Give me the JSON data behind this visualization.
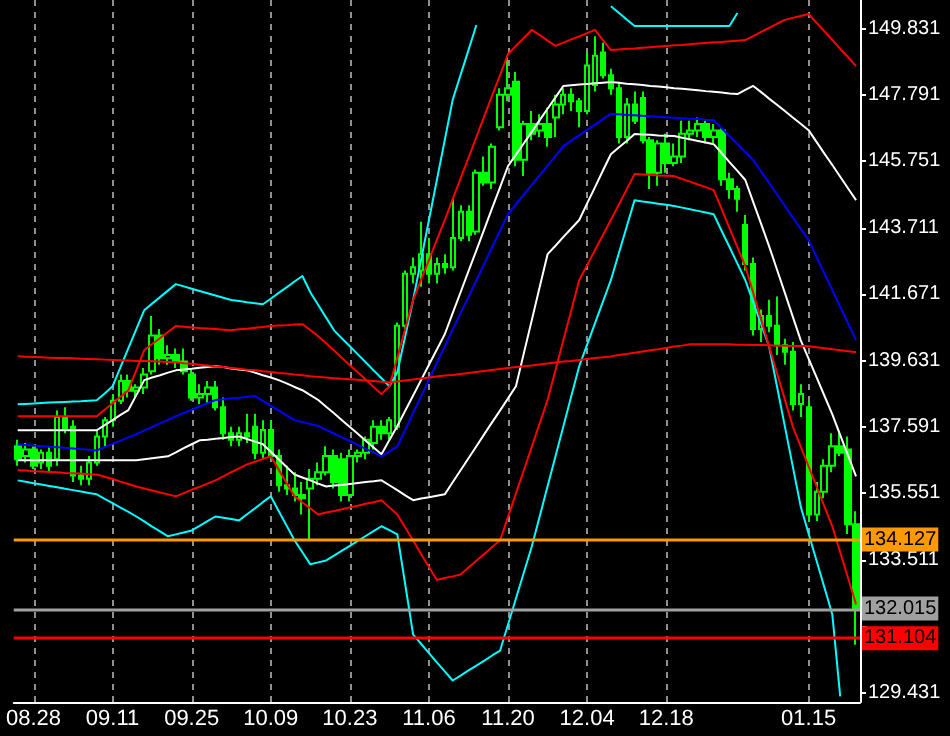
{
  "chart_data": {
    "type": "candlestick",
    "color": "#00ff00",
    "categories": [
      null,
      null,
      "08.28",
      null,
      null,
      null,
      null,
      null,
      null,
      null,
      null,
      null,
      "09.11",
      null,
      null,
      null,
      null,
      null,
      null,
      null,
      null,
      null,
      "09.25",
      null,
      null,
      null,
      null,
      null,
      null,
      null,
      null,
      null,
      "10.09",
      null,
      null,
      null,
      null,
      null,
      null,
      null,
      null,
      null,
      "10.23",
      null,
      null,
      null,
      null,
      null,
      null,
      null,
      null,
      null,
      "11.06",
      null,
      null,
      null,
      null,
      null,
      null,
      null,
      null,
      null,
      "11.20",
      null,
      null,
      null,
      null,
      null,
      null,
      null,
      null,
      null,
      "12.04",
      null,
      null,
      null,
      null,
      null,
      null,
      null,
      null,
      null,
      "12.18",
      null,
      null,
      null,
      null,
      null,
      null,
      null,
      null,
      null,
      null,
      null,
      null,
      null,
      null,
      null,
      null,
      null,
      "01.15",
      null,
      null,
      null,
      null,
      null,
      null
    ],
    "ohlc": [
      [
        137.0,
        137.2,
        136.4,
        136.6
      ],
      [
        136.7,
        137.1,
        136.5,
        136.9
      ],
      [
        136.9,
        137.0,
        136.3,
        136.4
      ],
      [
        136.5,
        136.9,
        136.3,
        136.8
      ],
      [
        136.8,
        137.0,
        136.2,
        136.4
      ],
      [
        136.6,
        138.1,
        136.4,
        137.9
      ],
      [
        137.9,
        138.2,
        137.4,
        137.5
      ],
      [
        137.6,
        137.8,
        135.9,
        136.1
      ],
      [
        136.1,
        136.4,
        135.8,
        136.0
      ],
      [
        136.0,
        136.7,
        135.8,
        136.5
      ],
      [
        136.5,
        137.5,
        136.4,
        137.3
      ],
      [
        137.3,
        137.9,
        137.0,
        137.8
      ],
      [
        137.8,
        138.6,
        137.6,
        138.4
      ],
      [
        138.4,
        139.2,
        138.3,
        139.0
      ],
      [
        139.0,
        139.2,
        138.5,
        138.7
      ],
      [
        138.7,
        138.9,
        138.5,
        138.8
      ],
      [
        138.8,
        139.4,
        138.6,
        139.2
      ],
      [
        139.3,
        141.0,
        139.2,
        140.4
      ],
      [
        140.4,
        140.6,
        139.5,
        139.7
      ],
      [
        139.7,
        140.1,
        139.5,
        139.8
      ],
      [
        139.8,
        140.0,
        139.4,
        139.6
      ],
      [
        139.6,
        140.0,
        139.2,
        139.3
      ],
      [
        139.2,
        139.4,
        138.4,
        138.5
      ],
      [
        138.5,
        138.9,
        138.3,
        138.6
      ],
      [
        138.6,
        139.0,
        138.3,
        138.8
      ],
      [
        138.8,
        139.0,
        138.1,
        138.2
      ],
      [
        138.2,
        138.5,
        137.2,
        137.4
      ],
      [
        137.4,
        137.6,
        137.0,
        137.2
      ],
      [
        137.2,
        137.6,
        137.0,
        137.4
      ],
      [
        137.4,
        138.0,
        137.1,
        137.3
      ],
      [
        137.6,
        138.0,
        136.6,
        136.8
      ],
      [
        136.8,
        137.8,
        136.6,
        137.5
      ],
      [
        137.5,
        137.8,
        136.6,
        136.7
      ],
      [
        136.7,
        136.9,
        135.6,
        135.8
      ],
      [
        135.8,
        136.4,
        135.5,
        135.7
      ],
      [
        135.7,
        136.2,
        135.3,
        135.5
      ],
      [
        135.5,
        135.9,
        134.9,
        135.4
      ],
      [
        135.7,
        136.3,
        134.1,
        136.0
      ],
      [
        136.0,
        136.5,
        135.8,
        136.2
      ],
      [
        136.2,
        137.0,
        136.1,
        136.7
      ],
      [
        136.7,
        136.9,
        135.7,
        135.9
      ],
      [
        136.6,
        136.8,
        135.3,
        135.5
      ],
      [
        135.5,
        136.9,
        135.3,
        136.7
      ],
      [
        136.7,
        136.9,
        136.5,
        136.8
      ],
      [
        136.8,
        137.3,
        136.6,
        137.2
      ],
      [
        137.1,
        137.8,
        136.9,
        137.6
      ],
      [
        137.6,
        137.8,
        137.2,
        137.4
      ],
      [
        137.4,
        137.9,
        137.2,
        137.8
      ],
      [
        137.6,
        140.8,
        137.5,
        140.7
      ],
      [
        140.7,
        142.4,
        140.6,
        142.3
      ],
      [
        142.3,
        142.8,
        142.0,
        142.5
      ],
      [
        142.4,
        143.9,
        141.9,
        142.9
      ],
      [
        142.9,
        143.4,
        142.0,
        142.3
      ],
      [
        142.3,
        142.8,
        142.0,
        142.6
      ],
      [
        142.6,
        142.9,
        142.3,
        142.5
      ],
      [
        142.5,
        144.6,
        142.4,
        143.4
      ],
      [
        143.4,
        144.4,
        143.3,
        144.2
      ],
      [
        144.2,
        144.4,
        143.3,
        143.5
      ],
      [
        143.6,
        145.5,
        143.5,
        145.4
      ],
      [
        145.4,
        145.9,
        145.0,
        145.1
      ],
      [
        145.1,
        146.3,
        144.9,
        146.2
      ],
      [
        146.8,
        148.0,
        146.7,
        147.8
      ],
      [
        147.8,
        149.0,
        147.6,
        148.0
      ],
      [
        148.2,
        148.5,
        145.6,
        145.8
      ],
      [
        145.8,
        147.0,
        145.3,
        146.9
      ],
      [
        146.9,
        147.3,
        146.4,
        146.6
      ],
      [
        146.7,
        147.2,
        146.5,
        146.9
      ],
      [
        146.9,
        147.4,
        146.2,
        146.5
      ],
      [
        147.1,
        147.8,
        146.5,
        147.5
      ],
      [
        147.5,
        148.0,
        147.2,
        147.8
      ],
      [
        147.8,
        148.0,
        147.3,
        147.6
      ],
      [
        147.6,
        147.7,
        146.8,
        147.3
      ],
      [
        147.3,
        149.1,
        147.2,
        148.7
      ],
      [
        148.1,
        149.6,
        147.9,
        149.0
      ],
      [
        149.1,
        149.4,
        148.3,
        148.4
      ],
      [
        148.4,
        148.6,
        147.8,
        148.0
      ],
      [
        148.0,
        148.2,
        146.3,
        146.5
      ],
      [
        146.5,
        147.7,
        146.3,
        147.5
      ],
      [
        147.5,
        147.9,
        146.9,
        147.0
      ],
      [
        147.7,
        147.9,
        146.3,
        146.4
      ],
      [
        146.4,
        146.5,
        144.9,
        145.4
      ],
      [
        145.4,
        146.4,
        145.0,
        146.3
      ],
      [
        146.3,
        146.6,
        145.4,
        145.7
      ],
      [
        145.7,
        146.3,
        145.6,
        145.9
      ],
      [
        145.9,
        147.0,
        145.7,
        146.6
      ],
      [
        146.6,
        147.0,
        146.4,
        146.7
      ],
      [
        146.7,
        147.1,
        146.5,
        146.9
      ],
      [
        146.9,
        147.0,
        146.3,
        146.5
      ],
      [
        146.5,
        146.9,
        146.3,
        146.7
      ],
      [
        146.7,
        146.8,
        145.0,
        145.2
      ],
      [
        145.2,
        145.4,
        144.6,
        144.9
      ],
      [
        144.9,
        145.0,
        144.2,
        144.6
      ],
      [
        143.8,
        144.1,
        142.4,
        142.6
      ],
      [
        142.6,
        142.8,
        140.4,
        140.6
      ],
      [
        140.6,
        141.2,
        140.2,
        141.0
      ],
      [
        141.0,
        141.5,
        140.5,
        140.7
      ],
      [
        140.7,
        141.6,
        139.8,
        140.1
      ],
      [
        140.1,
        140.3,
        139.5,
        139.9
      ],
      [
        139.9,
        140.2,
        138.1,
        138.3
      ],
      [
        138.3,
        138.9,
        137.9,
        138.6
      ],
      [
        138.2,
        138.4,
        134.7,
        134.9
      ],
      [
        134.9,
        135.9,
        134.7,
        135.6
      ],
      [
        135.6,
        136.6,
        135.4,
        136.4
      ],
      [
        136.4,
        137.4,
        136.2,
        137.0
      ],
      [
        137.0,
        137.4,
        136.7,
        136.8
      ],
      [
        136.9,
        137.3,
        134.3,
        134.6
      ],
      [
        134.6,
        135.0,
        130.9,
        132.0
      ]
    ],
    "series": [
      {
        "type": "line",
        "color": "#00ffff",
        "values": [
          138.29,
          138.3,
          138.31,
          138.33,
          138.34,
          138.35,
          138.36,
          138.37,
          138.38,
          138.4,
          138.41,
          138.62,
          138.84,
          139.43,
          140.01,
          140.6,
          141.18,
          141.38,
          141.58,
          141.78,
          141.98,
          141.91,
          141.84,
          141.77,
          141.7,
          141.63,
          141.56,
          141.49,
          141.46,
          141.42,
          141.39,
          141.36,
          141.53,
          141.71,
          141.88,
          142.06,
          142.23,
          141.73,
          141.34,
          140.95,
          140.56,
          140.31,
          140.07,
          139.82,
          139.58,
          139.33,
          139.09,
          138.84,
          139.27,
          140.38,
          141.49,
          142.72,
          143.95,
          145.18,
          146.41,
          147.64,
          148.41,
          149.17,
          149.94,
          null,
          null,
          null,
          null,
          null,
          null,
          null,
          null,
          null,
          null,
          null,
          null,
          null,
          null,
          null,
          null,
          150.52,
          150.32,
          150.11,
          149.91,
          149.91,
          149.91,
          149.91,
          149.91,
          149.91,
          149.91,
          149.91,
          149.91,
          149.91,
          149.91,
          149.91,
          149.91,
          150.31,
          null,
          null,
          null,
          null,
          null,
          null,
          null,
          null,
          null,
          null,
          null,
          null,
          null,
          null,
          null
        ]
      },
      {
        "type": "line",
        "color": "#00ffff",
        "values": [
          135.95,
          135.91,
          135.86,
          135.82,
          135.78,
          135.74,
          135.69,
          135.65,
          135.61,
          135.56,
          135.52,
          135.38,
          135.25,
          135.11,
          134.98,
          134.84,
          134.69,
          134.53,
          134.38,
          134.23,
          134.29,
          134.35,
          134.41,
          134.55,
          134.7,
          134.84,
          134.8,
          134.76,
          134.72,
          134.91,
          135.09,
          135.28,
          135.46,
          135.01,
          134.56,
          134.11,
          133.74,
          133.37,
          133.43,
          133.49,
          133.64,
          133.79,
          133.94,
          134.09,
          134.24,
          134.39,
          134.54,
          134.42,
          134.29,
          132.75,
          131.21,
          130.93,
          130.64,
          130.36,
          130.08,
          129.8,
          129.95,
          130.11,
          130.26,
          130.41,
          130.57,
          130.72,
          131.52,
          132.32,
          133.12,
          133.92,
          134.84,
          135.77,
          136.69,
          137.61,
          138.54,
          139.46,
          140.12,
          140.78,
          141.44,
          142.1,
          142.92,
          143.74,
          144.56,
          144.52,
          144.49,
          144.45,
          144.42,
          144.38,
          144.33,
          144.28,
          144.23,
          144.18,
          144.13,
          143.62,
          143.12,
          142.61,
          142.1,
          141.42,
          140.75,
          140.07,
          138.84,
          137.61,
          136.38,
          135.15,
          134.32,
          133.49,
          132.66,
          131.83,
          129.31,
          null,
          null
        ]
      },
      {
        "type": "line",
        "color": "#ff0000",
        "values": [
          137.92,
          137.92,
          137.92,
          137.92,
          137.92,
          137.92,
          137.92,
          137.92,
          137.92,
          137.92,
          137.92,
          138.12,
          138.32,
          138.52,
          138.72,
          139.34,
          139.95,
          140.14,
          140.32,
          140.51,
          140.69,
          140.67,
          140.65,
          140.63,
          140.62,
          140.6,
          140.58,
          140.56,
          140.59,
          140.61,
          140.64,
          140.66,
          140.69,
          140.71,
          140.72,
          140.74,
          140.75,
          140.57,
          140.38,
          140.16,
          139.94,
          139.71,
          139.49,
          139.27,
          139.05,
          138.82,
          138.6,
          138.84,
          139.72,
          140.61,
          141.49,
          142.11,
          142.72,
          143.34,
          143.95,
          144.59,
          145.23,
          145.86,
          146.5,
          147.14,
          147.78,
          148.41,
          149.05,
          149.3,
          149.54,
          149.79,
          149.63,
          149.46,
          149.3,
          149.4,
          149.5,
          149.59,
          149.69,
          149.79,
          149.48,
          149.17,
          149.19,
          149.21,
          149.22,
          149.24,
          149.26,
          149.28,
          149.3,
          149.32,
          149.33,
          149.35,
          149.37,
          149.39,
          149.41,
          149.42,
          149.44,
          149.46,
          149.48,
          149.6,
          149.73,
          149.85,
          149.98,
          150.1,
          150.16,
          150.22,
          150.28,
          150.01,
          149.75,
          149.48,
          149.21,
          148.95,
          148.68
        ]
      },
      {
        "type": "line",
        "color": "#ff0000",
        "values": [
          136.26,
          136.25,
          136.23,
          136.22,
          136.21,
          136.2,
          136.18,
          136.17,
          136.16,
          136.14,
          136.13,
          136.06,
          135.99,
          135.91,
          135.84,
          135.76,
          135.7,
          135.64,
          135.58,
          135.52,
          135.46,
          135.56,
          135.66,
          135.75,
          135.85,
          135.95,
          136.07,
          136.2,
          136.32,
          136.44,
          136.52,
          136.61,
          136.69,
          136.28,
          135.87,
          135.46,
          135.27,
          135.09,
          134.9,
          134.96,
          135.01,
          135.06,
          135.12,
          135.17,
          135.23,
          135.28,
          135.34,
          135.12,
          134.9,
          134.5,
          134.1,
          133.69,
          133.29,
          132.89,
          132.95,
          133.0,
          133.06,
          133.27,
          133.48,
          133.69,
          133.9,
          134.11,
          134.83,
          135.55,
          136.26,
          136.98,
          137.7,
          138.42,
          139.34,
          140.26,
          141.18,
          142.1,
          142.56,
          143.03,
          143.49,
          143.95,
          144.42,
          144.89,
          145.36,
          145.35,
          145.34,
          145.32,
          145.31,
          145.3,
          145.21,
          145.13,
          145.04,
          144.96,
          144.87,
          144.29,
          143.7,
          143.12,
          142.53,
          141.71,
          140.89,
          140.07,
          139.25,
          138.43,
          137.61,
          136.99,
          136.38,
          135.77,
          135.15,
          134.54,
          133.74,
          132.94,
          132.14
        ]
      },
      {
        "type": "line",
        "color": "#ffffff",
        "values": [
          137.49,
          137.49,
          137.49,
          137.49,
          137.49,
          137.49,
          137.49,
          137.49,
          137.49,
          137.49,
          137.49,
          137.65,
          137.8,
          137.96,
          138.11,
          138.57,
          139.03,
          139.11,
          139.18,
          139.26,
          139.33,
          139.36,
          139.38,
          139.41,
          139.43,
          139.46,
          139.43,
          139.39,
          139.36,
          139.33,
          139.26,
          139.18,
          139.11,
          139.03,
          138.93,
          138.82,
          138.72,
          138.57,
          138.42,
          138.21,
          138.01,
          137.8,
          137.59,
          137.38,
          137.17,
          136.96,
          136.75,
          137.19,
          137.62,
          138.09,
          138.56,
          139.03,
          139.5,
          139.97,
          140.44,
          141.09,
          141.73,
          142.38,
          143.02,
          143.67,
          144.32,
          144.96,
          145.61,
          145.96,
          146.31,
          146.66,
          147.02,
          147.37,
          147.72,
          148.07,
          148.09,
          148.11,
          148.13,
          148.15,
          148.17,
          148.19,
          148.17,
          148.14,
          148.12,
          148.1,
          148.07,
          148.05,
          148.03,
          148.0,
          147.98,
          147.96,
          147.94,
          147.91,
          147.89,
          147.87,
          147.84,
          147.82,
          147.95,
          148.07,
          147.88,
          147.68,
          147.49,
          147.3,
          147.1,
          146.91,
          146.71,
          146.35,
          145.99,
          145.64,
          145.28,
          144.92,
          144.56
        ]
      },
      {
        "type": "line",
        "color": "#ffffff",
        "values": [
          136.57,
          136.57,
          136.57,
          136.57,
          136.57,
          136.57,
          136.57,
          136.57,
          136.57,
          136.57,
          136.57,
          136.57,
          136.57,
          136.57,
          136.57,
          136.57,
          136.6,
          136.63,
          136.66,
          136.69,
          136.81,
          136.94,
          137.06,
          137.18,
          137.2,
          137.23,
          137.25,
          137.28,
          137.3,
          137.22,
          137.14,
          137.06,
          136.83,
          136.6,
          136.36,
          136.13,
          136.04,
          135.95,
          135.85,
          135.76,
          135.79,
          135.81,
          135.84,
          135.87,
          135.9,
          135.92,
          135.95,
          135.8,
          135.65,
          135.49,
          135.34,
          135.39,
          135.43,
          135.48,
          135.52,
          135.89,
          136.26,
          136.63,
          137.0,
          137.37,
          137.74,
          138.1,
          138.47,
          138.84,
          139.86,
          140.87,
          141.89,
          142.9,
          143.16,
          143.43,
          143.69,
          143.95,
          144.46,
          144.96,
          145.47,
          145.97,
          146.18,
          146.38,
          146.59,
          146.58,
          146.57,
          146.55,
          146.54,
          146.53,
          146.48,
          146.43,
          146.38,
          146.33,
          146.28,
          146.01,
          145.73,
          145.46,
          145.18,
          144.5,
          143.83,
          143.15,
          142.43,
          141.71,
          140.98,
          140.26,
          139.69,
          139.12,
          138.55,
          137.98,
          137.34,
          136.71,
          136.07
        ]
      },
      {
        "type": "line",
        "color": "#0000ff",
        "values": [
          137.06,
          137.04,
          137.02,
          137.0,
          136.98,
          136.97,
          136.95,
          136.93,
          136.91,
          136.89,
          136.87,
          136.97,
          137.07,
          137.17,
          137.27,
          137.37,
          137.48,
          137.59,
          137.7,
          137.81,
          137.92,
          138.02,
          138.12,
          138.22,
          138.32,
          138.42,
          138.44,
          138.47,
          138.49,
          138.52,
          138.54,
          138.39,
          138.24,
          138.1,
          137.95,
          137.8,
          137.74,
          137.68,
          137.62,
          137.5,
          137.39,
          137.27,
          137.16,
          137.04,
          136.92,
          136.81,
          136.69,
          136.84,
          136.99,
          137.5,
          138.02,
          138.53,
          139.04,
          139.56,
          140.07,
          140.58,
          141.09,
          141.59,
          142.1,
          142.61,
          143.12,
          143.62,
          144.13,
          144.43,
          144.73,
          145.03,
          145.32,
          145.62,
          145.92,
          146.22,
          146.39,
          146.55,
          146.72,
          146.88,
          147.05,
          147.21,
          147.2,
          147.18,
          147.17,
          147.15,
          147.14,
          147.12,
          147.11,
          147.09,
          147.08,
          147.06,
          147.05,
          147.03,
          147.02,
          146.77,
          146.53,
          146.28,
          146.04,
          145.79,
          145.44,
          145.09,
          144.74,
          144.38,
          144.03,
          143.68,
          143.33,
          142.82,
          142.31,
          141.8,
          141.28,
          140.77,
          140.26
        ]
      },
      {
        "type": "line",
        "color": "#ff0000",
        "values": [
          139.76,
          139.75,
          139.74,
          139.73,
          139.72,
          139.71,
          139.71,
          139.7,
          139.69,
          139.68,
          139.67,
          139.66,
          139.65,
          139.64,
          139.63,
          139.62,
          139.62,
          139.61,
          139.6,
          139.59,
          139.58,
          139.55,
          139.53,
          139.5,
          139.48,
          139.45,
          139.43,
          139.4,
          139.38,
          139.35,
          139.33,
          139.3,
          139.28,
          139.25,
          139.23,
          139.2,
          139.18,
          139.15,
          139.13,
          139.11,
          139.09,
          139.07,
          139.06,
          139.04,
          139.02,
          139.0,
          138.98,
          138.96,
          138.99,
          139.02,
          139.05,
          139.08,
          139.11,
          139.14,
          139.17,
          139.19,
          139.22,
          139.25,
          139.28,
          139.31,
          139.34,
          139.37,
          139.4,
          139.43,
          139.46,
          139.48,
          139.51,
          139.54,
          139.57,
          139.6,
          139.62,
          139.65,
          139.68,
          139.71,
          139.73,
          139.76,
          139.8,
          139.83,
          139.87,
          139.91,
          139.95,
          139.98,
          140.02,
          140.06,
          140.09,
          140.13,
          140.13,
          140.13,
          140.13,
          140.13,
          140.13,
          140.12,
          140.12,
          140.11,
          140.11,
          140.1,
          140.09,
          140.09,
          140.08,
          140.08,
          140.07,
          140.04,
          140.01,
          139.98,
          139.95,
          139.92,
          139.89
        ]
      }
    ],
    "ylim": [
      129.14,
      150.71
    ],
    "yticks": [
      {
        "value": 129.431,
        "label": "129.431"
      },
      {
        "value": 131.471,
        "label": null
      },
      {
        "value": 133.511,
        "label": "133.511"
      },
      {
        "value": 135.551,
        "label": "135.551"
      },
      {
        "value": 137.591,
        "label": "137.591"
      },
      {
        "value": 139.631,
        "label": "139.631"
      },
      {
        "value": 141.671,
        "label": "141.671"
      },
      {
        "value": 143.711,
        "label": "143.711"
      },
      {
        "value": 145.751,
        "label": "145.751"
      },
      {
        "value": 147.791,
        "label": "147.791"
      },
      {
        "value": 149.831,
        "label": "149.831"
      }
    ],
    "ref_lines": [
      {
        "axis": "y",
        "value": 134.127,
        "label": "134.127",
        "color": "#ff9900"
      },
      {
        "axis": "y",
        "value": 132.015,
        "label": "132.015",
        "color": "#a0a0a0"
      },
      {
        "axis": "y",
        "value": 131.104,
        "label": "131.104",
        "color": "#ff0000"
      }
    ],
    "grid": "x"
  }
}
